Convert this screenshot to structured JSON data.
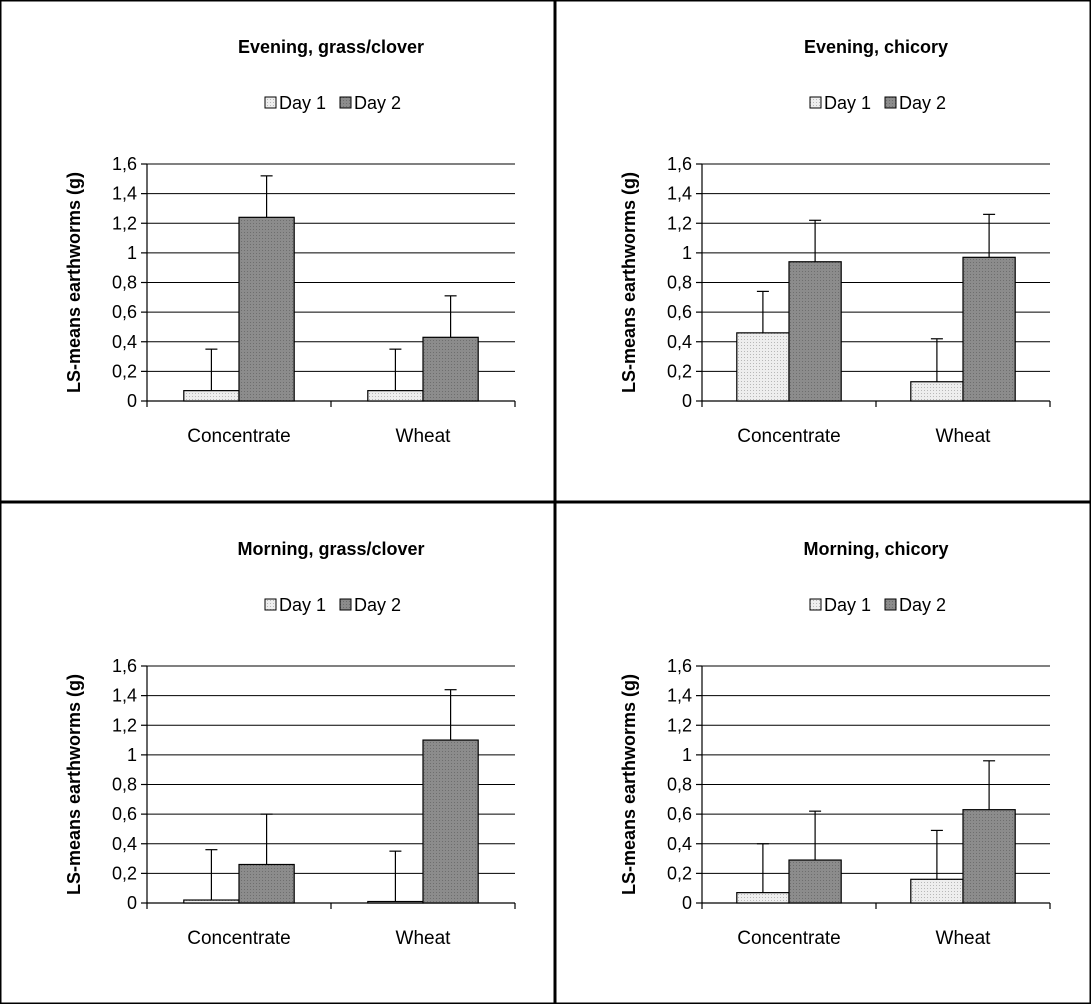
{
  "colors": {
    "day1": "#e4e4e4",
    "day2": "#8a8a8a"
  },
  "chart_data": [
    {
      "type": "bar",
      "title": "Evening, grass/clover",
      "ylabel": "LS-means earthworms (g)",
      "xlabel": "",
      "categories": [
        "Concentrate",
        "Wheat"
      ],
      "ylim": [
        0,
        1.6
      ],
      "yticks": [
        0,
        0.2,
        0.4,
        0.6,
        0.8,
        1,
        1.2,
        1.4,
        1.6
      ],
      "ytick_labels": [
        "0",
        "0,2",
        "0,4",
        "0,6",
        "0,8",
        "1",
        "1,2",
        "1,4",
        "1,6"
      ],
      "grid": true,
      "legend": "top",
      "series": [
        {
          "name": "Day 1",
          "values": [
            0.07,
            0.07
          ],
          "errors": [
            0.28,
            0.28
          ]
        },
        {
          "name": "Day 2",
          "values": [
            1.24,
            0.43
          ],
          "errors": [
            0.28,
            0.28
          ]
        }
      ]
    },
    {
      "type": "bar",
      "title": "Evening, chicory",
      "ylabel": "LS-means earthworms (g)",
      "xlabel": "",
      "categories": [
        "Concentrate",
        "Wheat"
      ],
      "ylim": [
        0,
        1.6
      ],
      "yticks": [
        0,
        0.2,
        0.4,
        0.6,
        0.8,
        1,
        1.2,
        1.4,
        1.6
      ],
      "ytick_labels": [
        "0",
        "0,2",
        "0,4",
        "0,6",
        "0,8",
        "1",
        "1,2",
        "1,4",
        "1,6"
      ],
      "grid": true,
      "legend": "top",
      "series": [
        {
          "name": "Day 1",
          "values": [
            0.46,
            0.13
          ],
          "errors": [
            0.28,
            0.29
          ]
        },
        {
          "name": "Day 2",
          "values": [
            0.94,
            0.97
          ],
          "errors": [
            0.28,
            0.29
          ]
        }
      ]
    },
    {
      "type": "bar",
      "title": "Morning, grass/clover",
      "ylabel": "LS-means earthworms (g)",
      "xlabel": "",
      "categories": [
        "Concentrate",
        "Wheat"
      ],
      "ylim": [
        0,
        1.6
      ],
      "yticks": [
        0,
        0.2,
        0.4,
        0.6,
        0.8,
        1,
        1.2,
        1.4,
        1.6
      ],
      "ytick_labels": [
        "0",
        "0,2",
        "0,4",
        "0,6",
        "0,8",
        "1",
        "1,2",
        "1,4",
        "1,6"
      ],
      "grid": true,
      "legend": "top",
      "series": [
        {
          "name": "Day 1",
          "values": [
            0.02,
            0.01
          ],
          "errors": [
            0.34,
            0.34
          ]
        },
        {
          "name": "Day 2",
          "values": [
            0.26,
            1.1
          ],
          "errors": [
            0.34,
            0.34
          ]
        }
      ]
    },
    {
      "type": "bar",
      "title": "Morning, chicory",
      "ylabel": "LS-means earthworms (g)",
      "xlabel": "",
      "categories": [
        "Concentrate",
        "Wheat"
      ],
      "ylim": [
        0,
        1.6
      ],
      "yticks": [
        0,
        0.2,
        0.4,
        0.6,
        0.8,
        1,
        1.2,
        1.4,
        1.6
      ],
      "ytick_labels": [
        "0",
        "0,2",
        "0,4",
        "0,6",
        "0,8",
        "1",
        "1,2",
        "1,4",
        "1,6"
      ],
      "grid": true,
      "legend": "top",
      "series": [
        {
          "name": "Day 1",
          "values": [
            0.07,
            0.16
          ],
          "errors": [
            0.33,
            0.33
          ]
        },
        {
          "name": "Day 2",
          "values": [
            0.29,
            0.63
          ],
          "errors": [
            0.33,
            0.33
          ]
        }
      ]
    }
  ]
}
